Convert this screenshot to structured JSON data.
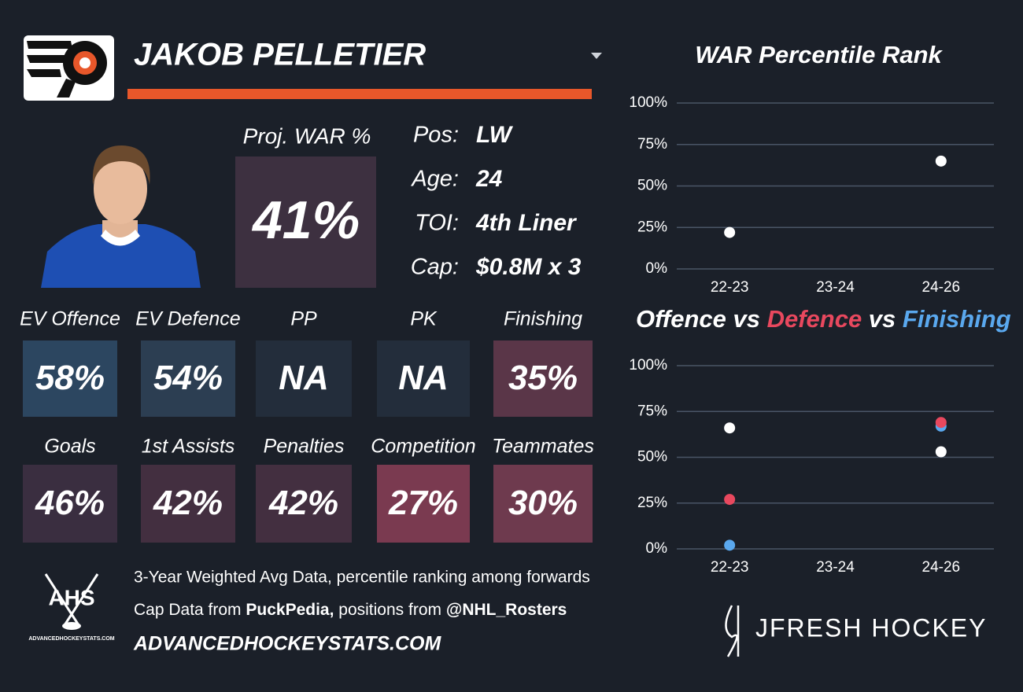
{
  "player": {
    "name": "JAKOB PELLETIER",
    "proj_label": "Proj. WAR %",
    "proj_value": "41%",
    "info": [
      {
        "label": "Pos:",
        "value": "LW"
      },
      {
        "label": "Age:",
        "value": "24"
      },
      {
        "label": "TOI:",
        "value": "4th Liner"
      },
      {
        "label": "Cap:",
        "value": "$0.8M x 3"
      }
    ]
  },
  "tiles": [
    [
      {
        "label": "EV Offence",
        "value": "58%",
        "color": "#2c4660"
      },
      {
        "label": "EV Defence",
        "value": "54%",
        "color": "#2c3e52"
      },
      {
        "label": "PP",
        "value": "NA",
        "color": "#232d3b"
      },
      {
        "label": "PK",
        "value": "NA",
        "color": "#232d3b"
      },
      {
        "label": "Finishing",
        "value": "35%",
        "color": "#5a3648"
      }
    ],
    [
      {
        "label": "Goals",
        "value": "46%",
        "color": "#3a2e40"
      },
      {
        "label": "1st Assists",
        "value": "42%",
        "color": "#432f40"
      },
      {
        "label": "Penalties",
        "value": "42%",
        "color": "#432f40"
      },
      {
        "label": "Competition",
        "value": "27%",
        "color": "#7a3a50"
      },
      {
        "label": "Teammates",
        "value": "30%",
        "color": "#6e3a4e"
      }
    ]
  ],
  "footer": {
    "line1": "3-Year Weighted Avg Data, percentile ranking among forwards",
    "line2": [
      "Cap Data from ",
      "PuckPedia,",
      " positions from ",
      "@NHL_Rosters"
    ],
    "site": "ADVANCEDHOCKEYSTATS.COM",
    "ahs_logo": "AHS",
    "ahs_small": "ADVANCEDHOCKEYSTATS.COM",
    "brand": "JFRESH HOCKEY"
  },
  "chart_data": [
    {
      "type": "scatter",
      "title": "WAR Percentile Rank",
      "categories": [
        "22-23",
        "23-24",
        "24-26"
      ],
      "series": [
        {
          "color": "#ffffff",
          "values": [
            22,
            null,
            65
          ]
        }
      ],
      "ylim": [
        0,
        100
      ],
      "yticks": [
        {
          "value": 0,
          "label": "0%"
        },
        {
          "value": 25,
          "label": "25%"
        },
        {
          "value": 50,
          "label": "50%"
        },
        {
          "value": 75,
          "label": "75%"
        },
        {
          "value": 100,
          "label": "100%"
        }
      ],
      "grid": true
    },
    {
      "type": "scatter",
      "title_parts": [
        {
          "text": "Offence",
          "color": "#ffffff"
        },
        {
          "text": " vs ",
          "color": "#ffffff"
        },
        {
          "text": "Defence",
          "color": "#e8485e"
        },
        {
          "text": " vs ",
          "color": "#ffffff"
        },
        {
          "text": "Finishing",
          "color": "#5aa8ee"
        }
      ],
      "categories": [
        "22-23",
        "23-24",
        "24-26"
      ],
      "series": [
        {
          "color": "#5aa8ee",
          "values": [
            2,
            null,
            67
          ]
        },
        {
          "color": "#e8485e",
          "values": [
            27,
            null,
            69
          ]
        },
        {
          "color": "#ffffff",
          "values": [
            66,
            null,
            53
          ]
        }
      ],
      "ylim": [
        0,
        100
      ],
      "yticks": [
        {
          "value": 0,
          "label": "0%"
        },
        {
          "value": 25,
          "label": "25%"
        },
        {
          "value": 50,
          "label": "50%"
        },
        {
          "value": 75,
          "label": "75%"
        },
        {
          "value": 100,
          "label": "100%"
        }
      ],
      "grid": true
    }
  ]
}
